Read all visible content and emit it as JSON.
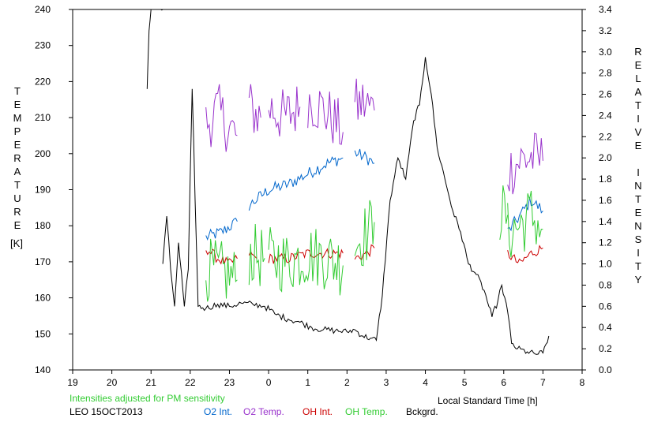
{
  "chart_data": {
    "type": "line",
    "ylabel_left": "TEMPERATURE",
    "ylabel_left_unit": "[K]",
    "ylabel_right": "RELATIVE INTENSITY",
    "xlabel": "Local Standard Time [h]",
    "note": "Intensities adjusted for PM sensitivity",
    "station": "LEO 15OCT2013",
    "xlim": [
      19,
      32
    ],
    "ylim_left": [
      140,
      240
    ],
    "ylim_right": [
      0.0,
      3.4
    ],
    "x_ticks": [
      19,
      20,
      21,
      22,
      23,
      24,
      25,
      26,
      27,
      28,
      29,
      30,
      31,
      32
    ],
    "x_tick_labels": [
      "19",
      "20",
      "21",
      "22",
      "23",
      "0",
      "1",
      "2",
      "3",
      "4",
      "5",
      "6",
      "7",
      "8"
    ],
    "y_left_ticks": [
      "240",
      "230",
      "220",
      "210",
      "200",
      "190",
      "180",
      "170",
      "160",
      "150",
      "140"
    ],
    "y_right_ticks": [
      "3.4",
      "3.2",
      "3.0",
      "2.8",
      "2.6",
      "2.4",
      "2.2",
      "2.0",
      "1.8",
      "1.6",
      "1.4",
      "1.2",
      "1.0",
      "0.8",
      "0.6",
      "0.4",
      "0.2",
      "0.0"
    ],
    "series": [
      {
        "name": "O2 Int.",
        "axis": "right",
        "color": "#0066cc",
        "style": "noisy",
        "segments": [
          {
            "x": [
              22.4,
              22.8,
              23.2
            ],
            "y": [
              1.25,
              1.3,
              1.4
            ]
          },
          {
            "x": [
              23.5,
              24.0,
              24.5,
              25.0,
              25.5,
              25.9
            ],
            "y": [
              1.55,
              1.7,
              1.75,
              1.85,
              1.95,
              2.0
            ]
          },
          {
            "x": [
              26.2,
              26.5,
              26.7
            ],
            "y": [
              2.05,
              2.0,
              1.95
            ]
          },
          {
            "x": [
              30.1,
              30.4,
              30.7,
              31.0
            ],
            "y": [
              1.3,
              1.45,
              1.6,
              1.5
            ]
          }
        ]
      },
      {
        "name": "O2 Temp.",
        "axis": "left",
        "color": "#9933cc",
        "style": "noisy",
        "segments": [
          {
            "x": [
              22.4,
              22.7,
              23.0,
              23.2
            ],
            "y": [
              208,
              212,
              207,
              205
            ]
          },
          {
            "x": [
              23.5,
              23.8
            ],
            "y": [
              213,
              210
            ]
          },
          {
            "x": [
              24.0,
              24.4,
              24.8
            ],
            "y": [
              213,
              210,
              213
            ]
          },
          {
            "x": [
              25.0,
              25.3,
              25.6,
              25.9
            ],
            "y": [
              215,
              213,
              210,
              206
            ]
          },
          {
            "x": [
              26.2,
              26.4,
              26.7
            ],
            "y": [
              213,
              214,
              212
            ]
          },
          {
            "x": [
              30.1,
              30.4,
              30.7,
              31.0
            ],
            "y": [
              195,
              198,
              199,
              198
            ]
          }
        ]
      },
      {
        "name": "OH Int.",
        "axis": "right",
        "color": "#cc0000",
        "style": "noisy",
        "segments": [
          {
            "x": [
              22.4,
              22.7,
              23.0,
              23.2
            ],
            "y": [
              1.15,
              1.05,
              1.0,
              1.05
            ]
          },
          {
            "x": [
              23.5,
              23.7
            ],
            "y": [
              1.1,
              1.05
            ]
          },
          {
            "x": [
              24.0,
              24.5,
              25.0,
              25.5,
              25.9
            ],
            "y": [
              1.05,
              1.05,
              1.1,
              1.1,
              1.1
            ]
          },
          {
            "x": [
              26.2,
              26.5,
              26.7
            ],
            "y": [
              1.05,
              1.1,
              1.15
            ]
          },
          {
            "x": [
              30.1,
              30.4,
              30.7,
              31.0
            ],
            "y": [
              1.1,
              1.0,
              1.1,
              1.15
            ]
          }
        ]
      },
      {
        "name": "OH Temp.",
        "axis": "left",
        "color": "#33cc33",
        "style": "noisy",
        "segments": [
          {
            "x": [
              22.4,
              22.8,
              23.2
            ],
            "y": [
              168,
              167,
              165
            ]
          },
          {
            "x": [
              23.5,
              23.9
            ],
            "y": [
              172,
              171
            ]
          },
          {
            "x": [
              24.0,
              24.5,
              25.0,
              25.5,
              25.9
            ],
            "y": [
              171,
              170,
              172,
              171,
              169
            ]
          },
          {
            "x": [
              26.2,
              26.5,
              26.7
            ],
            "y": [
              175,
              178,
              181
            ]
          },
          {
            "x": [
              29.9,
              30.1
            ],
            "y": [
              184,
              183
            ]
          },
          {
            "x": [
              30.1,
              30.4,
              30.7,
              31.0
            ],
            "y": [
              178,
              180,
              183,
              179
            ]
          }
        ]
      },
      {
        "name": "Bckgrd.",
        "axis": "right",
        "color": "#000000",
        "style": "noisy",
        "segments": [
          {
            "x": [
              20.9,
              20.95,
              21.0
            ],
            "y": [
              2.65,
              3.2,
              3.4
            ]
          },
          {
            "x": [
              21.25,
              21.3
            ],
            "y": [
              3.4,
              3.4
            ]
          },
          {
            "x": [
              21.3,
              21.4,
              21.5,
              21.6,
              21.7,
              21.85,
              21.95,
              22.05,
              22.2,
              22.4,
              22.7,
              23.0,
              23.3,
              23.6,
              23.9,
              24.2,
              24.5,
              24.8,
              25.1,
              25.4,
              25.7,
              26.0,
              26.2,
              26.4,
              26.6,
              26.75,
              26.9,
              27.1,
              27.3,
              27.5,
              27.7,
              27.85,
              28.0,
              28.15,
              28.3,
              28.5,
              28.7,
              28.9,
              29.1,
              29.3,
              29.5,
              29.7,
              29.85,
              29.95,
              30.1,
              30.2,
              30.35,
              30.6,
              30.8,
              31.0,
              31.15
            ],
            "y": [
              1.0,
              1.45,
              0.95,
              0.6,
              1.2,
              0.6,
              0.95,
              2.65,
              0.6,
              0.58,
              0.62,
              0.6,
              0.63,
              0.62,
              0.6,
              0.52,
              0.48,
              0.45,
              0.4,
              0.38,
              0.37,
              0.36,
              0.38,
              0.32,
              0.3,
              0.28,
              0.7,
              1.6,
              2.0,
              1.8,
              2.35,
              2.5,
              2.95,
              2.6,
              2.1,
              1.8,
              1.5,
              1.3,
              1.0,
              0.9,
              0.75,
              0.5,
              0.65,
              0.8,
              0.55,
              0.25,
              0.2,
              0.17,
              0.15,
              0.16,
              0.32
            ]
          }
        ]
      }
    ]
  }
}
